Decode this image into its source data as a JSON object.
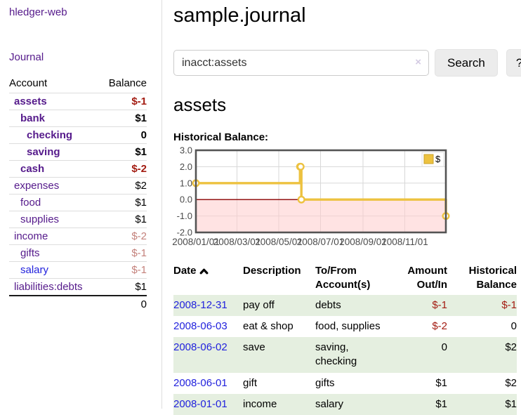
{
  "sidebar": {
    "app_title": "hledger-web",
    "journal_label": "Journal",
    "accounts": {
      "headers": [
        "Account",
        "Balance"
      ],
      "rows": [
        {
          "label": "assets",
          "indent": 1,
          "bold": true,
          "balance": "$-1",
          "unvisited": false
        },
        {
          "label": "bank",
          "indent": 2,
          "bold": true,
          "balance": "$1",
          "unvisited": false
        },
        {
          "label": "checking",
          "indent": 3,
          "bold": true,
          "balance": "0",
          "unvisited": false
        },
        {
          "label": "saving",
          "indent": 3,
          "bold": true,
          "balance": "$1",
          "unvisited": false
        },
        {
          "label": "cash",
          "indent": 2,
          "bold": true,
          "balance": "$-2",
          "unvisited": false
        },
        {
          "label": "expenses",
          "indent": 1,
          "bold": false,
          "balance": "$2",
          "unvisited": false
        },
        {
          "label": "food",
          "indent": 2,
          "bold": false,
          "balance": "$1",
          "unvisited": false
        },
        {
          "label": "supplies",
          "indent": 2,
          "bold": false,
          "balance": "$1",
          "unvisited": false
        },
        {
          "label": "income",
          "indent": 1,
          "bold": false,
          "balance": "$-2",
          "unvisited": false
        },
        {
          "label": "gifts",
          "indent": 2,
          "bold": false,
          "balance": "$-1",
          "unvisited": false
        },
        {
          "label": "salary",
          "indent": 2,
          "bold": false,
          "balance": "$-1",
          "unvisited": true
        },
        {
          "label": "liabilities:debts",
          "indent": 1,
          "bold": false,
          "balance": "$1",
          "unvisited": false
        }
      ],
      "total": "0"
    }
  },
  "main": {
    "title": "sample.journal",
    "search": {
      "value": "inacct:assets",
      "clear_icon": "×",
      "button_label": "Search",
      "help_label": "?"
    },
    "account_heading": "assets",
    "chart_label": "Historical Balance:",
    "chart_data": {
      "type": "line",
      "step": true,
      "title": "Historical Balance:",
      "series": [
        {
          "name": "$",
          "color": "#edc240",
          "points": [
            [
              "2008-01-01",
              1
            ],
            [
              "2008-06-01",
              2
            ],
            [
              "2008-06-02",
              2
            ],
            [
              "2008-06-03",
              0
            ],
            [
              "2008-12-31",
              -1
            ]
          ]
        }
      ],
      "x_range": [
        "2008-01-01",
        "2008-12-31"
      ],
      "x_ticks": [
        "2008/01/01",
        "2008/03/01",
        "2008/05/01",
        "2008/07/01",
        "2008/09/01",
        "2008/11/01"
      ],
      "y_ticks": [
        3.0,
        2.0,
        1.0,
        0.0,
        -1.0,
        -2.0
      ],
      "ylim": [
        -2,
        3
      ],
      "grid": true,
      "legend_position": "top-right",
      "colors": {
        "grid": "#d8d8d8",
        "border": "#545454",
        "tick_text": "#4a4a4a",
        "negative_region": "#ffcccc",
        "zero_line": "#8b0000",
        "marker_fill": "#ffffff",
        "legend_border": "#e2e2e2"
      }
    },
    "register": {
      "headers": {
        "date": "Date",
        "description": "Description",
        "accounts": "To/From Account(s)",
        "amount": "Amount Out/In",
        "balance": "Historical Balance"
      },
      "rows": [
        {
          "date": "2008-12-31",
          "description": "pay off",
          "accounts": "debts",
          "amount": "$-1",
          "balance": "$-1"
        },
        {
          "date": "2008-06-03",
          "description": "eat & shop",
          "accounts": "food, supplies",
          "amount": "$-2",
          "balance": "0"
        },
        {
          "date": "2008-06-02",
          "description": "save",
          "accounts": "saving, checking",
          "amount": "0",
          "balance": "$2"
        },
        {
          "date": "2008-06-01",
          "description": "gift",
          "accounts": "gifts",
          "amount": "$1",
          "balance": "$2"
        },
        {
          "date": "2008-01-01",
          "description": "income",
          "accounts": "salary",
          "amount": "$1",
          "balance": "$1"
        }
      ]
    }
  }
}
